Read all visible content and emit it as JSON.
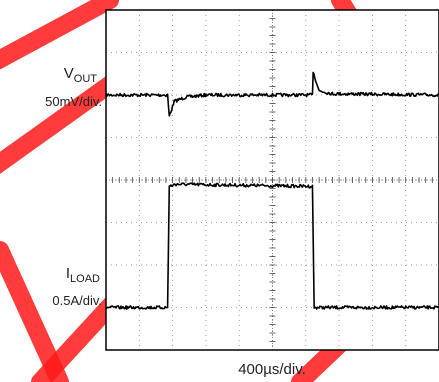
{
  "chart_data": {
    "type": "line",
    "title": "",
    "grid": true,
    "xlabel": "400µs/div.",
    "x_divisions": 10,
    "y_divisions": 8,
    "series": [
      {
        "name_main": "V",
        "name_sub": "OUT",
        "scale": "50mV/div.",
        "baseline_div": 6.0,
        "points": [
          {
            "x_div": 0.0,
            "y_div": 6.0
          },
          {
            "x_div": 1.85,
            "y_div": 6.0
          },
          {
            "x_div": 1.9,
            "y_div": 5.5
          },
          {
            "x_div": 2.05,
            "y_div": 5.85
          },
          {
            "x_div": 2.4,
            "y_div": 5.95
          },
          {
            "x_div": 3.0,
            "y_div": 6.0
          },
          {
            "x_div": 6.2,
            "y_div": 6.0
          },
          {
            "x_div": 6.22,
            "y_div": 6.55
          },
          {
            "x_div": 6.4,
            "y_div": 6.1
          },
          {
            "x_div": 6.8,
            "y_div": 6.03
          },
          {
            "x_div": 10.0,
            "y_div": 6.0
          }
        ]
      },
      {
        "name_main": "I",
        "name_sub": "LOAD",
        "scale": "0.5A/div.",
        "baseline_div": 1.0,
        "points": [
          {
            "x_div": 0.0,
            "y_div": 1.0
          },
          {
            "x_div": 1.85,
            "y_div": 1.0
          },
          {
            "x_div": 1.9,
            "y_div": 3.85
          },
          {
            "x_div": 2.1,
            "y_div": 3.9
          },
          {
            "x_div": 6.2,
            "y_div": 3.85
          },
          {
            "x_div": 6.25,
            "y_div": 1.0
          },
          {
            "x_div": 10.0,
            "y_div": 1.0
          }
        ]
      }
    ],
    "watermark": {
      "text": "SAMPLE",
      "color": "#ff1a1a"
    }
  }
}
